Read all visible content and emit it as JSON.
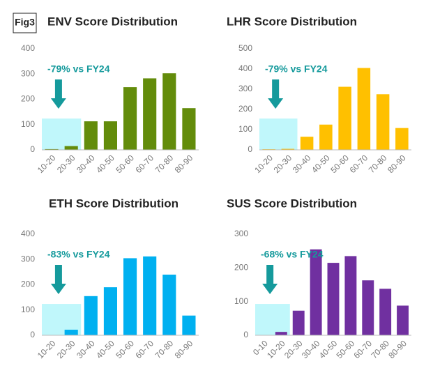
{
  "figure_label": "Fig3",
  "chart_data": [
    {
      "type": "bar",
      "title": "ENV Score Distribution",
      "annotation": "-79% vs FY24",
      "categories": [
        "10-20",
        "20-30",
        "30-40",
        "40-50",
        "50-60",
        "60-70",
        "70-80",
        "80-90"
      ],
      "values": [
        3,
        15,
        113,
        113,
        248,
        283,
        303,
        165
      ],
      "color": "#638c0b",
      "ylim": [
        0,
        400
      ],
      "yticks": [
        0,
        100,
        200,
        300,
        400
      ]
    },
    {
      "type": "bar",
      "title": "LHR Score Distribution",
      "annotation": "-79% vs FY24",
      "categories": [
        "10-20",
        "20-30",
        "30-40",
        "40-50",
        "50-60",
        "60-70",
        "70-80",
        "80-90"
      ],
      "values": [
        3,
        5,
        65,
        125,
        312,
        405,
        275,
        108
      ],
      "color": "#ffc000",
      "ylim": [
        0,
        500
      ],
      "yticks": [
        0,
        100,
        200,
        300,
        400,
        500
      ]
    },
    {
      "type": "bar",
      "title": "ETH Score Distribution",
      "annotation": "-83% vs FY24",
      "categories": [
        "10-20",
        "20-30",
        "30-40",
        "40-50",
        "50-60",
        "60-70",
        "70-80",
        "80-90"
      ],
      "values": [
        0,
        22,
        155,
        190,
        305,
        312,
        240,
        78
      ],
      "color": "#00b0f0",
      "ylim": [
        0,
        400
      ],
      "yticks": [
        0,
        100,
        200,
        300,
        400
      ]
    },
    {
      "type": "bar",
      "title": "SUS Score Distribution",
      "annotation": "-68% vs FY24",
      "categories": [
        "0-10",
        "10-20",
        "20-30",
        "30-40",
        "40-50",
        "50-60",
        "60-70",
        "70-80",
        "80-90"
      ],
      "values": [
        0,
        10,
        73,
        255,
        215,
        235,
        163,
        138,
        88
      ],
      "color": "#7030a0",
      "ylim": [
        0,
        300
      ],
      "yticks": [
        0,
        100,
        200,
        300
      ]
    }
  ]
}
